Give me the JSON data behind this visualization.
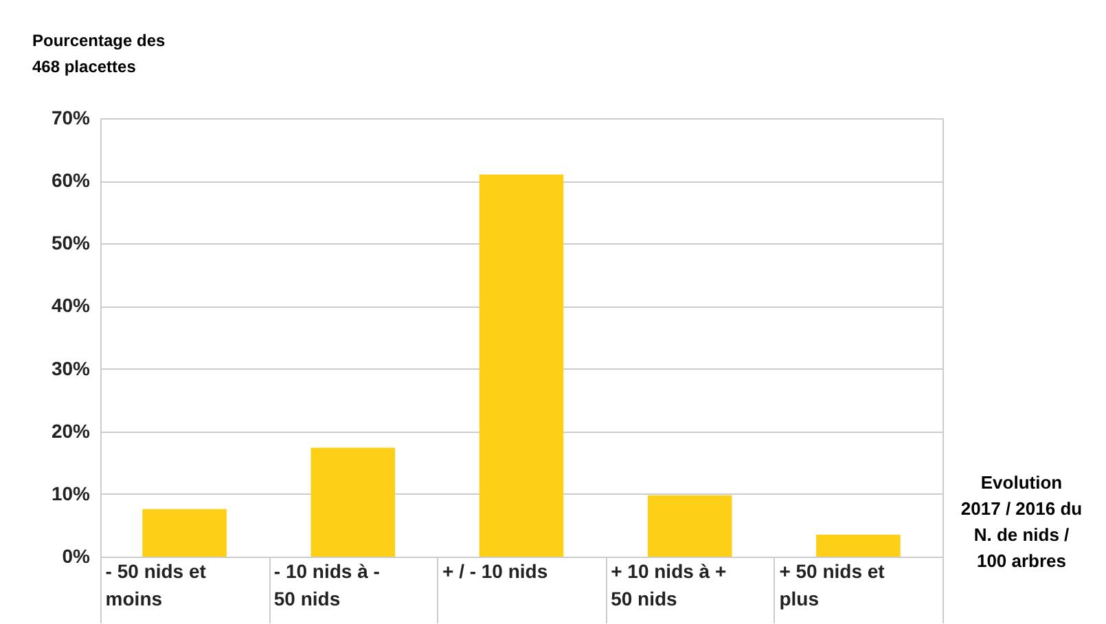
{
  "chart_data": {
    "type": "bar",
    "ylabel": "Pourcentage des\n468 placettes",
    "xlabel": "Evolution\n2017 / 2016 du\nN. de nids /\n100 arbres",
    "categories": [
      "- 50 nids et moins",
      "- 10 nids à - 50 nids",
      "+ / - 10 nids",
      "+ 10 nids à + 50 nids",
      "+ 50 nids et plus"
    ],
    "values": [
      7.6,
      17.4,
      61,
      9.8,
      3.5
    ],
    "color": "#fdd017",
    "ylim": [
      0,
      70
    ],
    "yticks": [
      {
        "value": 0,
        "label": "0%"
      },
      {
        "value": 10,
        "label": "10%"
      },
      {
        "value": 20,
        "label": "20%"
      },
      {
        "value": 30,
        "label": "30%"
      },
      {
        "value": 40,
        "label": "40%"
      },
      {
        "value": 50,
        "label": "50%"
      },
      {
        "value": 60,
        "label": "60%"
      },
      {
        "value": 70,
        "label": "70%"
      }
    ],
    "grid": "y",
    "legend": false
  }
}
